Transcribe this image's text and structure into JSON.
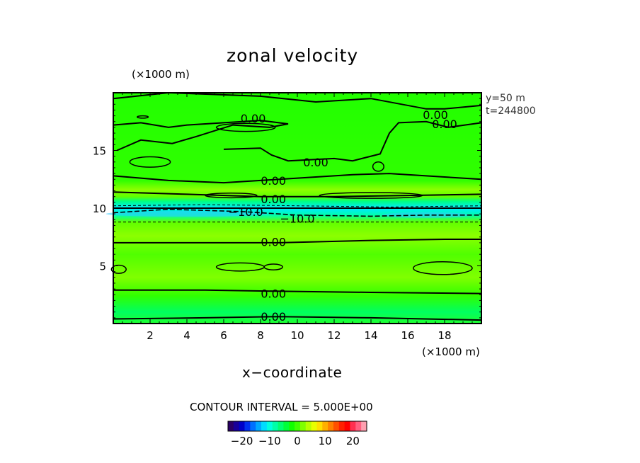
{
  "chart_data": {
    "type": "heatmap",
    "title": "zonal velocity",
    "xlabel": "x−coordinate",
    "x_unit": "(×1000 m)",
    "y_unit": "(×1000 m)",
    "xlim": [
      0,
      20
    ],
    "ylim": [
      0,
      20
    ],
    "x_ticks": [
      2,
      4,
      6,
      8,
      10,
      12,
      14,
      16,
      18
    ],
    "y_ticks": [
      5,
      10,
      15
    ],
    "annotation_lines": [
      "y=50  m",
      "t=244800"
    ],
    "contour_interval_text": "CONTOUR INTERVAL = 5.000E+00",
    "contour_interval": 5.0,
    "contour_labels": [
      {
        "text": "0.00",
        "x": 7.6,
        "y": 17.8
      },
      {
        "text": "0.00",
        "x": 17.5,
        "y": 18.1
      },
      {
        "text": "0.00",
        "x": 18.0,
        "y": 17.3
      },
      {
        "text": "0.00",
        "x": 11.0,
        "y": 14.0
      },
      {
        "text": "0.00",
        "x": 8.7,
        "y": 12.4
      },
      {
        "text": "0.00",
        "x": 8.7,
        "y": 10.8
      },
      {
        "text": "−10.0",
        "x": 7.2,
        "y": 9.7
      },
      {
        "text": "−10.0",
        "x": 10.0,
        "y": 9.1
      },
      {
        "text": "0.00",
        "x": 8.7,
        "y": 7.1
      },
      {
        "text": "0.00",
        "x": 8.7,
        "y": 2.6
      },
      {
        "text": "0.00",
        "x": 8.7,
        "y": 0.6
      }
    ],
    "colorbar": {
      "range": [
        -25,
        25
      ],
      "tick_labels": [
        "−20",
        "−10",
        "0",
        "10",
        "20"
      ],
      "tick_values": [
        -20,
        -10,
        0,
        10,
        20
      ],
      "colors": [
        "#2a0066",
        "#18009a",
        "#0000c8",
        "#0030f0",
        "#0070ff",
        "#00a8ff",
        "#00dcff",
        "#00ffe0",
        "#00ffa8",
        "#00ff70",
        "#00ff38",
        "#10ff00",
        "#40ff00",
        "#80ff00",
        "#b8ff00",
        "#e8ff00",
        "#ffe000",
        "#ffb000",
        "#ff8000",
        "#ff5000",
        "#ff2000",
        "#ff0000",
        "#ff3050",
        "#ff6080",
        "#ffa0b0"
      ]
    },
    "field_colors": {
      "background": "#2aff00",
      "light_band": "#9cff00",
      "cyan_band": "#00f0ff",
      "teal_band": "#00ffa0"
    }
  }
}
